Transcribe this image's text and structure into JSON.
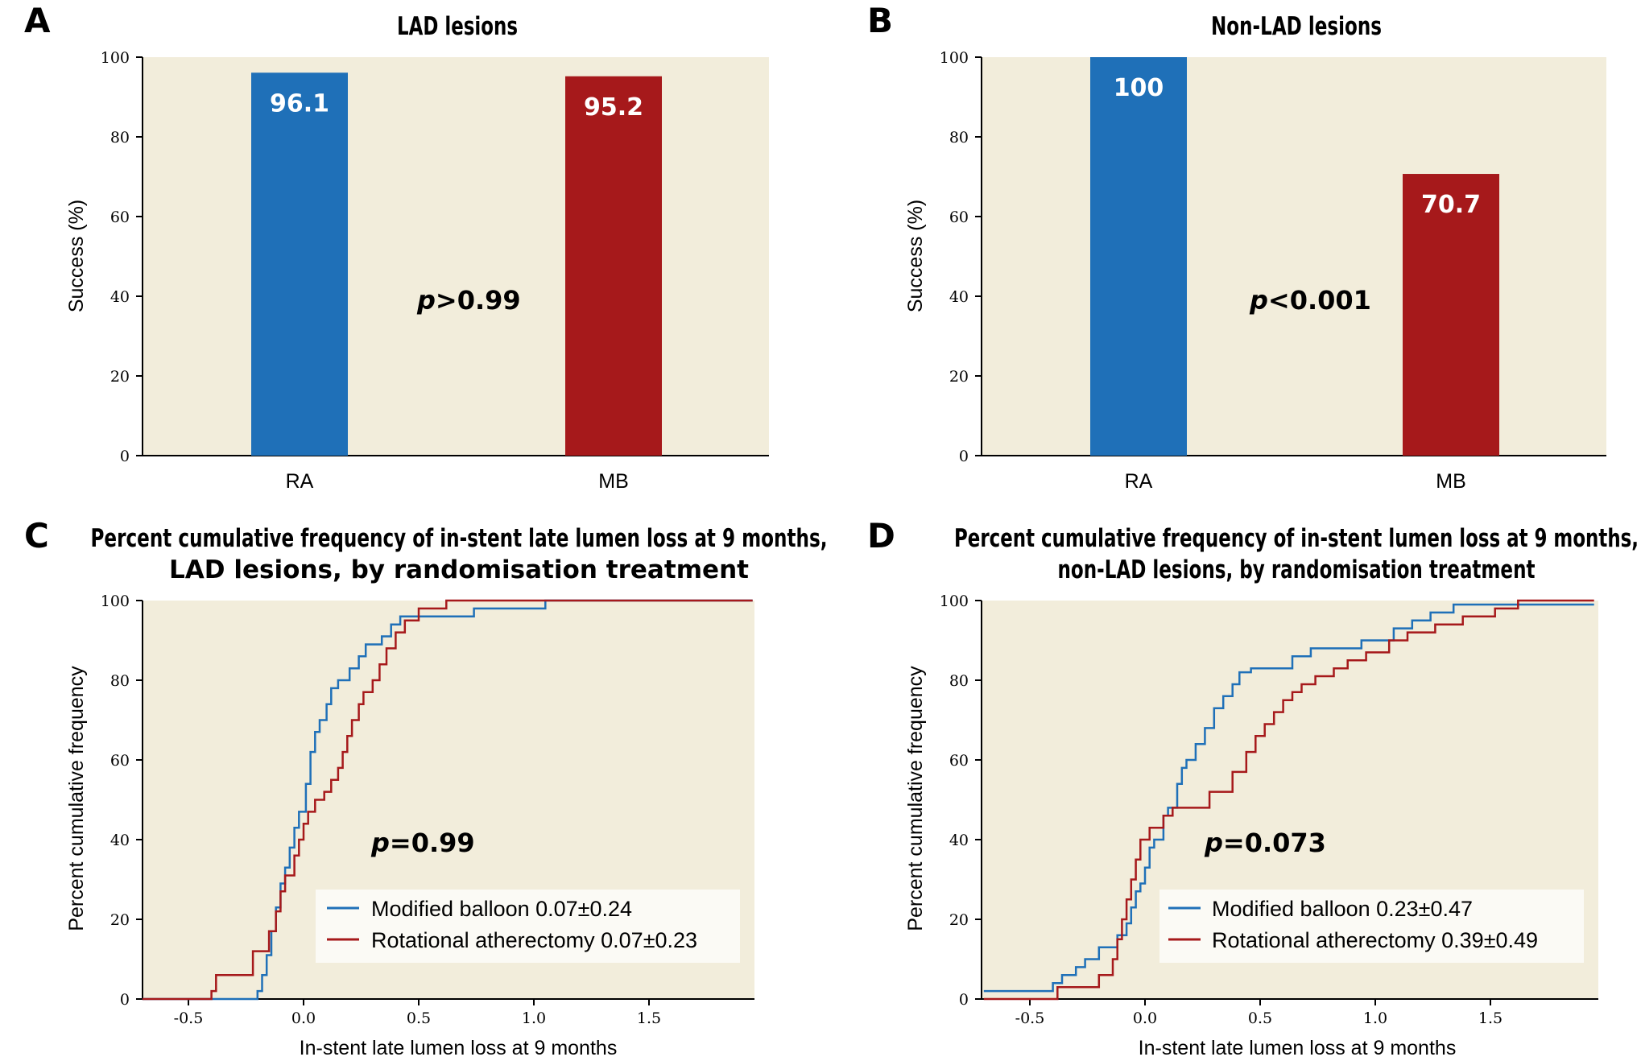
{
  "colors": {
    "ra": "#1f70b8",
    "mb": "#a6191b",
    "plot_bg": "#f2eddb",
    "legend_bg": "#fbfaf5"
  },
  "chart_data": [
    {
      "panel": "A",
      "type": "bar",
      "title": "LAD lesions",
      "ylabel": "Success (%)",
      "ylim": [
        0,
        100
      ],
      "yticks": [
        "0",
        "20",
        "40",
        "60",
        "80",
        "100"
      ],
      "categories": [
        "RA",
        "MB"
      ],
      "values": [
        96.1,
        95.2
      ],
      "value_labels": [
        "96.1",
        "95.2"
      ],
      "annotation": {
        "p": "p",
        "rest": ">0.99"
      }
    },
    {
      "panel": "B",
      "type": "bar",
      "title": "Non-LAD lesions",
      "ylabel": "Success (%)",
      "ylim": [
        0,
        100
      ],
      "yticks": [
        "0",
        "20",
        "40",
        "60",
        "80",
        "100"
      ],
      "categories": [
        "RA",
        "MB"
      ],
      "values": [
        100,
        70.7
      ],
      "value_labels": [
        "100",
        "70.7"
      ],
      "annotation": {
        "p": "p",
        "rest": "<0.001"
      }
    },
    {
      "panel": "C",
      "type": "line",
      "step": true,
      "title": [
        "Percent cumulative frequency of in-stent late lumen loss at 9 months,",
        "LAD lesions, by randomisation treatment"
      ],
      "xlabel": "In-stent late lumen loss at 9 months",
      "ylabel": "Percent cumulative frequency",
      "xlim": [
        -0.7,
        1.95
      ],
      "ylim": [
        0,
        100
      ],
      "xticks": [
        -0.5,
        0.0,
        0.5,
        1.0,
        1.5
      ],
      "xtick_labels": [
        "-0.5",
        "0.0",
        "0.5",
        "1.0",
        "1.5"
      ],
      "yticks": [
        "0",
        "20",
        "40",
        "60",
        "80",
        "100"
      ],
      "annotation": {
        "p": "p",
        "rest": "=0.99"
      },
      "series": [
        {
          "name": "Modified balloon 0.07±0.24",
          "color_key": "ra",
          "points": [
            [
              -0.7,
              0
            ],
            [
              -0.2,
              0
            ],
            [
              -0.2,
              2
            ],
            [
              -0.18,
              2
            ],
            [
              -0.18,
              6
            ],
            [
              -0.16,
              6
            ],
            [
              -0.16,
              11
            ],
            [
              -0.14,
              11
            ],
            [
              -0.14,
              17
            ],
            [
              -0.12,
              17
            ],
            [
              -0.12,
              23
            ],
            [
              -0.1,
              23
            ],
            [
              -0.1,
              29
            ],
            [
              -0.08,
              29
            ],
            [
              -0.08,
              33
            ],
            [
              -0.06,
              33
            ],
            [
              -0.06,
              38
            ],
            [
              -0.04,
              38
            ],
            [
              -0.04,
              43
            ],
            [
              -0.02,
              43
            ],
            [
              -0.02,
              47
            ],
            [
              0.01,
              47
            ],
            [
              0.01,
              54
            ],
            [
              0.03,
              54
            ],
            [
              0.03,
              62
            ],
            [
              0.05,
              62
            ],
            [
              0.05,
              67
            ],
            [
              0.07,
              67
            ],
            [
              0.07,
              70
            ],
            [
              0.1,
              70
            ],
            [
              0.1,
              74
            ],
            [
              0.12,
              74
            ],
            [
              0.12,
              78
            ],
            [
              0.15,
              78
            ],
            [
              0.15,
              80
            ],
            [
              0.2,
              80
            ],
            [
              0.2,
              83
            ],
            [
              0.24,
              83
            ],
            [
              0.24,
              86
            ],
            [
              0.27,
              86
            ],
            [
              0.27,
              89
            ],
            [
              0.34,
              89
            ],
            [
              0.34,
              91
            ],
            [
              0.38,
              91
            ],
            [
              0.38,
              94
            ],
            [
              0.42,
              94
            ],
            [
              0.42,
              96
            ],
            [
              0.74,
              96
            ],
            [
              0.74,
              98
            ],
            [
              1.05,
              98
            ],
            [
              1.05,
              100
            ],
            [
              1.95,
              100
            ]
          ]
        },
        {
          "name": "Rotational atherectomy 0.07±0.23",
          "color_key": "mb",
          "points": [
            [
              -0.7,
              0
            ],
            [
              -0.4,
              0
            ],
            [
              -0.4,
              2
            ],
            [
              -0.38,
              2
            ],
            [
              -0.38,
              6
            ],
            [
              -0.22,
              6
            ],
            [
              -0.22,
              12
            ],
            [
              -0.15,
              12
            ],
            [
              -0.15,
              17
            ],
            [
              -0.12,
              17
            ],
            [
              -0.12,
              22
            ],
            [
              -0.1,
              22
            ],
            [
              -0.1,
              27
            ],
            [
              -0.08,
              27
            ],
            [
              -0.08,
              31
            ],
            [
              -0.04,
              31
            ],
            [
              -0.04,
              36
            ],
            [
              -0.02,
              36
            ],
            [
              -0.02,
              40
            ],
            [
              0.0,
              40
            ],
            [
              0.0,
              44
            ],
            [
              0.02,
              44
            ],
            [
              0.02,
              47
            ],
            [
              0.05,
              47
            ],
            [
              0.05,
              50
            ],
            [
              0.09,
              50
            ],
            [
              0.09,
              52
            ],
            [
              0.12,
              52
            ],
            [
              0.12,
              55
            ],
            [
              0.15,
              55
            ],
            [
              0.15,
              58
            ],
            [
              0.17,
              58
            ],
            [
              0.17,
              62
            ],
            [
              0.19,
              62
            ],
            [
              0.19,
              66
            ],
            [
              0.21,
              66
            ],
            [
              0.21,
              70
            ],
            [
              0.24,
              70
            ],
            [
              0.24,
              74
            ],
            [
              0.26,
              74
            ],
            [
              0.26,
              77
            ],
            [
              0.3,
              77
            ],
            [
              0.3,
              80
            ],
            [
              0.33,
              80
            ],
            [
              0.33,
              84
            ],
            [
              0.36,
              84
            ],
            [
              0.36,
              88
            ],
            [
              0.4,
              88
            ],
            [
              0.4,
              92
            ],
            [
              0.44,
              92
            ],
            [
              0.44,
              95
            ],
            [
              0.5,
              95
            ],
            [
              0.5,
              98
            ],
            [
              0.62,
              98
            ],
            [
              0.62,
              100
            ],
            [
              1.95,
              100
            ]
          ]
        }
      ]
    },
    {
      "panel": "D",
      "type": "line",
      "step": true,
      "title": [
        "Percent cumulative frequency of in-stent lumen loss at 9 months,",
        "non-LAD lesions, by randomisation treatment"
      ],
      "xlabel": "In-stent late lumen loss at 9 months",
      "ylabel": "Percent cumulative frequency",
      "xlim": [
        -0.7,
        1.95
      ],
      "ylim": [
        0,
        100
      ],
      "xticks": [
        -0.5,
        0.0,
        0.5,
        1.0,
        1.5
      ],
      "xtick_labels": [
        "-0.5",
        "0.0",
        "0.5",
        "1.0",
        "1.5"
      ],
      "yticks": [
        "0",
        "20",
        "40",
        "60",
        "80",
        "100"
      ],
      "annotation": {
        "p": "p",
        "rest": "=0.073"
      },
      "series": [
        {
          "name": "Modified balloon 0.23±0.47",
          "color_key": "ra",
          "points": [
            [
              -0.7,
              2
            ],
            [
              -0.4,
              2
            ],
            [
              -0.4,
              4
            ],
            [
              -0.36,
              4
            ],
            [
              -0.36,
              6
            ],
            [
              -0.3,
              6
            ],
            [
              -0.3,
              8
            ],
            [
              -0.26,
              8
            ],
            [
              -0.26,
              10
            ],
            [
              -0.2,
              10
            ],
            [
              -0.2,
              13
            ],
            [
              -0.12,
              13
            ],
            [
              -0.12,
              16
            ],
            [
              -0.08,
              16
            ],
            [
              -0.08,
              19
            ],
            [
              -0.06,
              19
            ],
            [
              -0.06,
              23
            ],
            [
              -0.04,
              23
            ],
            [
              -0.04,
              27
            ],
            [
              -0.02,
              27
            ],
            [
              -0.02,
              29
            ],
            [
              0.0,
              29
            ],
            [
              0.0,
              33
            ],
            [
              0.02,
              33
            ],
            [
              0.02,
              38
            ],
            [
              0.04,
              38
            ],
            [
              0.04,
              40
            ],
            [
              0.08,
              40
            ],
            [
              0.08,
              46
            ],
            [
              0.1,
              46
            ],
            [
              0.1,
              48
            ],
            [
              0.14,
              48
            ],
            [
              0.14,
              54
            ],
            [
              0.16,
              54
            ],
            [
              0.16,
              58
            ],
            [
              0.18,
              58
            ],
            [
              0.18,
              60
            ],
            [
              0.22,
              60
            ],
            [
              0.22,
              64
            ],
            [
              0.26,
              64
            ],
            [
              0.26,
              68
            ],
            [
              0.3,
              68
            ],
            [
              0.3,
              73
            ],
            [
              0.34,
              73
            ],
            [
              0.34,
              76
            ],
            [
              0.38,
              76
            ],
            [
              0.38,
              79
            ],
            [
              0.41,
              79
            ],
            [
              0.41,
              82
            ],
            [
              0.46,
              82
            ],
            [
              0.46,
              83
            ],
            [
              0.64,
              83
            ],
            [
              0.64,
              86
            ],
            [
              0.72,
              86
            ],
            [
              0.72,
              88
            ],
            [
              0.94,
              88
            ],
            [
              0.94,
              90
            ],
            [
              1.08,
              90
            ],
            [
              1.08,
              93
            ],
            [
              1.16,
              93
            ],
            [
              1.16,
              95
            ],
            [
              1.24,
              95
            ],
            [
              1.24,
              97
            ],
            [
              1.34,
              97
            ],
            [
              1.34,
              99
            ],
            [
              1.95,
              99
            ]
          ]
        },
        {
          "name": "Rotational atherectomy 0.39±0.49",
          "color_key": "mb",
          "points": [
            [
              -0.7,
              0
            ],
            [
              -0.38,
              0
            ],
            [
              -0.38,
              3
            ],
            [
              -0.2,
              3
            ],
            [
              -0.2,
              6
            ],
            [
              -0.14,
              6
            ],
            [
              -0.14,
              10
            ],
            [
              -0.12,
              10
            ],
            [
              -0.12,
              15
            ],
            [
              -0.1,
              15
            ],
            [
              -0.1,
              20
            ],
            [
              -0.08,
              20
            ],
            [
              -0.08,
              25
            ],
            [
              -0.06,
              25
            ],
            [
              -0.06,
              30
            ],
            [
              -0.04,
              30
            ],
            [
              -0.04,
              35
            ],
            [
              -0.02,
              35
            ],
            [
              -0.02,
              40
            ],
            [
              0.02,
              40
            ],
            [
              0.02,
              43
            ],
            [
              0.08,
              43
            ],
            [
              0.08,
              46
            ],
            [
              0.12,
              46
            ],
            [
              0.12,
              48
            ],
            [
              0.28,
              48
            ],
            [
              0.28,
              52
            ],
            [
              0.38,
              52
            ],
            [
              0.38,
              57
            ],
            [
              0.44,
              57
            ],
            [
              0.44,
              62
            ],
            [
              0.48,
              62
            ],
            [
              0.48,
              66
            ],
            [
              0.52,
              66
            ],
            [
              0.52,
              69
            ],
            [
              0.56,
              69
            ],
            [
              0.56,
              72
            ],
            [
              0.6,
              72
            ],
            [
              0.6,
              75
            ],
            [
              0.64,
              75
            ],
            [
              0.64,
              77
            ],
            [
              0.68,
              77
            ],
            [
              0.68,
              79
            ],
            [
              0.74,
              79
            ],
            [
              0.74,
              81
            ],
            [
              0.82,
              81
            ],
            [
              0.82,
              83
            ],
            [
              0.88,
              83
            ],
            [
              0.88,
              85
            ],
            [
              0.96,
              85
            ],
            [
              0.96,
              87
            ],
            [
              1.06,
              87
            ],
            [
              1.06,
              90
            ],
            [
              1.14,
              90
            ],
            [
              1.14,
              92
            ],
            [
              1.26,
              92
            ],
            [
              1.26,
              94
            ],
            [
              1.38,
              94
            ],
            [
              1.38,
              96
            ],
            [
              1.52,
              96
            ],
            [
              1.52,
              98
            ],
            [
              1.62,
              98
            ],
            [
              1.62,
              100
            ],
            [
              1.95,
              100
            ]
          ]
        }
      ]
    }
  ]
}
